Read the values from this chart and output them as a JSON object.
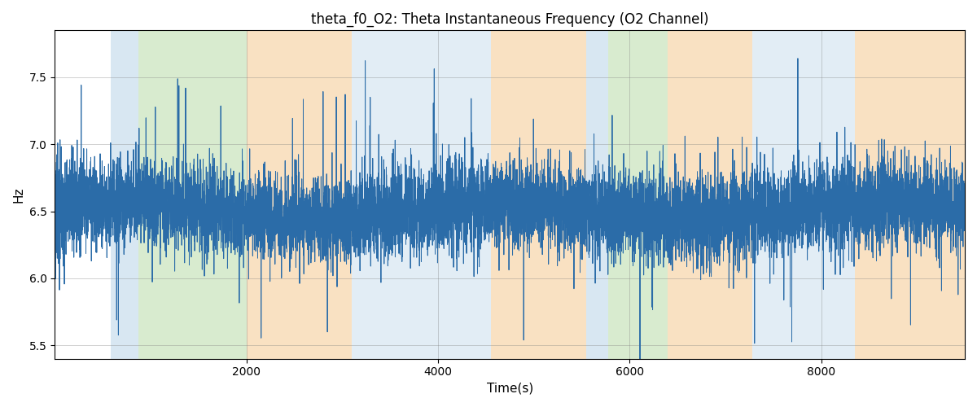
{
  "title": "theta_f0_O2: Theta Instantaneous Frequency (O2 Channel)",
  "xlabel": "Time(s)",
  "ylabel": "Hz",
  "xlim": [
    0,
    9500
  ],
  "ylim": [
    5.4,
    7.85
  ],
  "line_color": "#2b6ca8",
  "line_width": 0.7,
  "background_color": "#ffffff",
  "seed": 42,
  "signal_mean": 6.5,
  "bands": [
    {
      "start": 580,
      "end": 870,
      "color": "#b8d4e8",
      "alpha": 0.55
    },
    {
      "start": 870,
      "end": 2000,
      "color": "#b2d9a0",
      "alpha": 0.5
    },
    {
      "start": 2000,
      "end": 3100,
      "color": "#f5c990",
      "alpha": 0.55
    },
    {
      "start": 3100,
      "end": 4550,
      "color": "#b8d4e8",
      "alpha": 0.4
    },
    {
      "start": 4550,
      "end": 5550,
      "color": "#f5c990",
      "alpha": 0.55
    },
    {
      "start": 5550,
      "end": 5780,
      "color": "#b8d4e8",
      "alpha": 0.55
    },
    {
      "start": 5780,
      "end": 6400,
      "color": "#b2d9a0",
      "alpha": 0.5
    },
    {
      "start": 6400,
      "end": 7280,
      "color": "#f5c990",
      "alpha": 0.55
    },
    {
      "start": 7280,
      "end": 8350,
      "color": "#b8d4e8",
      "alpha": 0.4
    },
    {
      "start": 8350,
      "end": 9600,
      "color": "#f5c990",
      "alpha": 0.55
    }
  ],
  "title_fontsize": 12,
  "axis_label_fontsize": 11,
  "tick_fontsize": 10,
  "figsize": [
    12.0,
    5.0
  ],
  "dpi": 100
}
